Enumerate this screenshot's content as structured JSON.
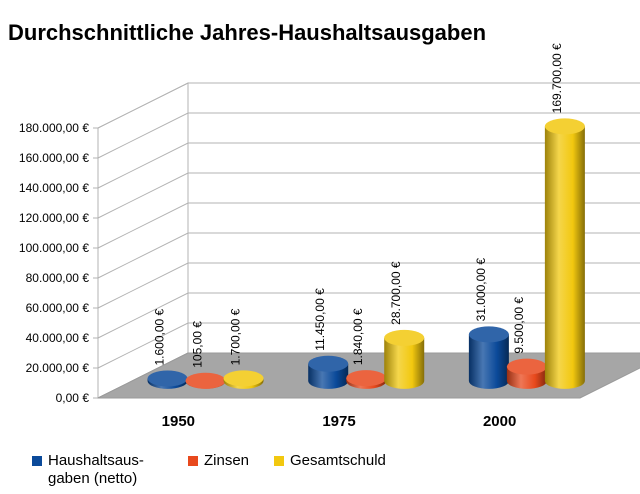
{
  "chart_data": {
    "type": "bar",
    "title": "Durchschnittliche Jahres-Haushaltsausgaben",
    "categories": [
      "1950",
      "1975",
      "2000"
    ],
    "series": [
      {
        "name": "Haushaltsaus-\ngaben (netto)",
        "color": "#0b4a9a",
        "values": [
          1600,
          11450,
          31000
        ],
        "labels": [
          "1.600,00 €",
          "11.450,00 €",
          "31.000,00 €"
        ]
      },
      {
        "name": "Zinsen",
        "color": "#e8491d",
        "values": [
          105,
          1840,
          9500
        ],
        "labels": [
          "105,00 €",
          "1.840,00 €",
          "9.500,00 €"
        ]
      },
      {
        "name": "Gesamtschuld",
        "color": "#f2c80f",
        "values": [
          1700,
          28700,
          169700
        ],
        "labels": [
          "1.700,00 €",
          "28.700,00 €",
          "169.700,00 €"
        ]
      }
    ],
    "y_ticks": [
      {
        "value": 0,
        "label": "0,00 €"
      },
      {
        "value": 20000,
        "label": "20.000,00 €"
      },
      {
        "value": 40000,
        "label": "40.000,00 €"
      },
      {
        "value": 60000,
        "label": "60.000,00 €"
      },
      {
        "value": 80000,
        "label": "80.000,00 €"
      },
      {
        "value": 100000,
        "label": "100.000,00 €"
      },
      {
        "value": 120000,
        "label": "120.000,00 €"
      },
      {
        "value": 140000,
        "label": "140.000,00 €"
      },
      {
        "value": 160000,
        "label": "160.000,00 €"
      },
      {
        "value": 180000,
        "label": "180.000,00 €"
      }
    ],
    "ylim": [
      0,
      180000
    ],
    "grid": true,
    "legend_position": "bottom-left",
    "bar_shape": "cylinder-3d",
    "floor_color": "#a6a6a6"
  }
}
